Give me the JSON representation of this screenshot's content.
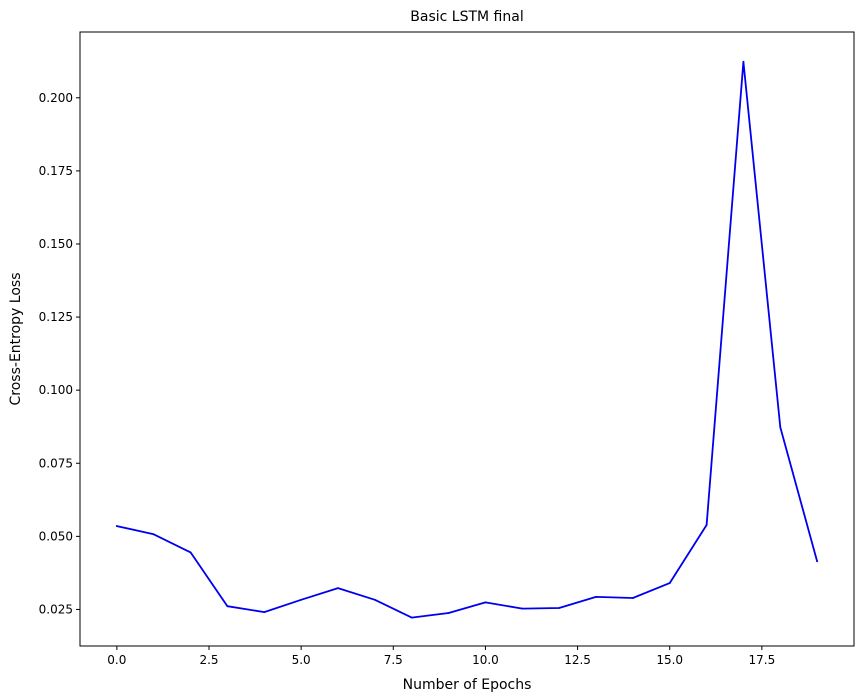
{
  "chart_data": {
    "type": "line",
    "title": "Basic LSTM final",
    "xlabel": "Number of Epochs",
    "ylabel": "Cross-Entropy Loss",
    "xlim": [
      -1.0,
      20.0
    ],
    "ylim": [
      0.0125,
      0.2225
    ],
    "xticks": [
      0.0,
      2.5,
      5.0,
      7.5,
      10.0,
      12.5,
      15.0,
      17.5
    ],
    "xtick_labels": [
      "0.0",
      "2.5",
      "5.0",
      "7.5",
      "10.0",
      "12.5",
      "15.0",
      "17.5"
    ],
    "yticks": [
      0.025,
      0.05,
      0.075,
      0.1,
      0.125,
      0.15,
      0.175,
      0.2
    ],
    "ytick_labels": [
      "0.025",
      "0.050",
      "0.075",
      "0.100",
      "0.125",
      "0.150",
      "0.175",
      "0.200"
    ],
    "grid": false,
    "series": [
      {
        "color": "#0000ee",
        "x": [
          0,
          1,
          2,
          3,
          4,
          5,
          6,
          7,
          8,
          9,
          10,
          11,
          12,
          13,
          14,
          15,
          16,
          17,
          18,
          19
        ],
        "y": [
          0.0535,
          0.0507,
          0.0445,
          0.0261,
          0.0241,
          0.0283,
          0.0323,
          0.0283,
          0.0222,
          0.0238,
          0.0274,
          0.0253,
          0.0255,
          0.0293,
          0.0289,
          0.034,
          0.0539,
          0.2123,
          0.0873,
          0.0415
        ]
      }
    ]
  }
}
